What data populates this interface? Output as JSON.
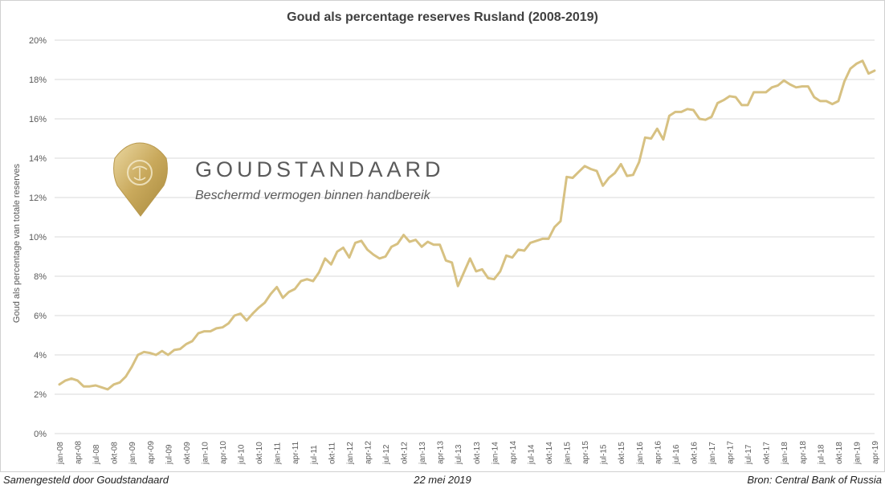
{
  "footer": {
    "left": "Samengesteld door Goudstandaard",
    "center": "22 mei 2019",
    "right": "Bron: Central Bank of Russia"
  },
  "logo": {
    "brand": "GOUDSTANDAARD",
    "tagline": "Beschermd vermogen binnen handbereik",
    "icon": "lion-shield-icon"
  },
  "colors": {
    "line": "#D7C182",
    "grid": "#d9d9d9",
    "axis_text": "#595959",
    "logo_text": "#5a5a5a"
  },
  "chart_data": {
    "type": "line",
    "title": "Goud als percentage reserves Rusland (2008-2019)",
    "ylabel": "Goud als percentage van totale reserves",
    "xlabel": "",
    "ylim": [
      0,
      20
    ],
    "yticks": [
      "0%",
      "2%",
      "4%",
      "6%",
      "8%",
      "10%",
      "12%",
      "14%",
      "16%",
      "18%",
      "20%"
    ],
    "grid": true,
    "xticks": [
      "jan-08",
      "apr-08",
      "jul-08",
      "okt-08",
      "jan-09",
      "apr-09",
      "jul-09",
      "okt-09",
      "jan-10",
      "apr-10",
      "jul-10",
      "okt-10",
      "jan-11",
      "apr-11",
      "jul-11",
      "okt-11",
      "jan-12",
      "apr-12",
      "jul-12",
      "okt-12",
      "jan-13",
      "apr-13",
      "jul-13",
      "okt-13",
      "jan-14",
      "apr-14",
      "jul-14",
      "okt-14",
      "jan-15",
      "apr-15",
      "jul-15",
      "okt-15",
      "jan-16",
      "apr-16",
      "jul-16",
      "okt-16",
      "jan-17",
      "apr-17",
      "jul-17",
      "okt-17",
      "jan-18",
      "apr-18",
      "jul-18",
      "okt-18",
      "jan-19",
      "apr-19"
    ],
    "series": [
      {
        "values": [
          2.5,
          2.7,
          2.8,
          2.7,
          2.4,
          2.4,
          2.45,
          2.35,
          2.25,
          2.5,
          2.6,
          2.9,
          3.4,
          4.0,
          4.15,
          4.1,
          4.0,
          4.2,
          4.0,
          4.25,
          4.3,
          4.55,
          4.7,
          5.1,
          5.2,
          5.2,
          5.35,
          5.4,
          5.6,
          6.0,
          6.1,
          5.75,
          6.1,
          6.4,
          6.65,
          7.1,
          7.45,
          6.9,
          7.2,
          7.35,
          7.75,
          7.85,
          7.75,
          8.2,
          8.9,
          8.6,
          9.25,
          9.45,
          8.95,
          9.7,
          9.8,
          9.35,
          9.1,
          8.9,
          9.0,
          9.5,
          9.65,
          10.1,
          9.75,
          9.85,
          9.5,
          9.75,
          9.6,
          9.6,
          8.8,
          8.7,
          7.5,
          8.2,
          8.9,
          8.25,
          8.35,
          7.9,
          7.85,
          8.25,
          9.05,
          8.95,
          9.35,
          9.3,
          9.7,
          9.8,
          9.9,
          9.9,
          10.5,
          10.8,
          13.05,
          13.0,
          13.3,
          13.6,
          13.45,
          13.35,
          12.6,
          13.0,
          13.25,
          13.7,
          13.1,
          13.15,
          13.8,
          15.05,
          15.0,
          15.5,
          14.95,
          16.15,
          16.35,
          16.35,
          16.5,
          16.45,
          16.0,
          15.95,
          16.1,
          16.8,
          16.95,
          17.15,
          17.1,
          16.7,
          16.7,
          17.35,
          17.35,
          17.35,
          17.6,
          17.7,
          17.95,
          17.75,
          17.6,
          17.65,
          17.65,
          17.1,
          16.9,
          16.9,
          16.75,
          16.9,
          17.9,
          18.55,
          18.8,
          18.95,
          18.3,
          18.45
        ]
      }
    ]
  }
}
